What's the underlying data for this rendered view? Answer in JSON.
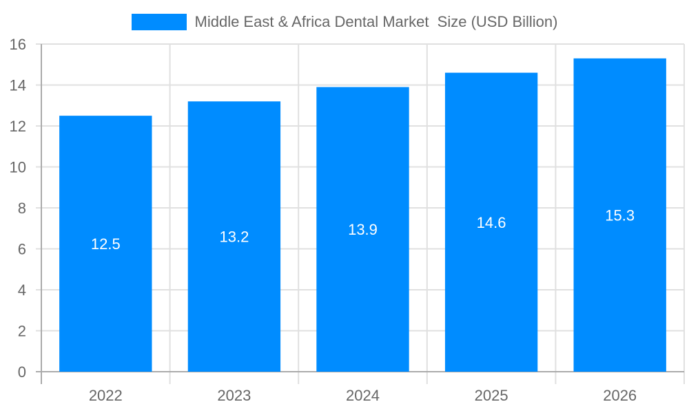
{
  "legend": {
    "label": "Middle East & Africa Dental Market  Size (USD Billion)",
    "color": "#008cff"
  },
  "chart_data": {
    "type": "bar",
    "title": "",
    "categories": [
      "2022",
      "2023",
      "2024",
      "2025",
      "2026"
    ],
    "series": [
      {
        "name": "Middle East & Africa Dental Market  Size (USD Billion)",
        "values": [
          12.5,
          13.2,
          13.9,
          14.6,
          15.3
        ],
        "color": "#008cff"
      }
    ],
    "xlabel": "",
    "ylabel": "",
    "ylim": [
      0,
      16
    ],
    "yticks": [
      0,
      2,
      4,
      6,
      8,
      10,
      12,
      14,
      16
    ],
    "grid": true,
    "legend_position": "top",
    "data_labels": true
  }
}
